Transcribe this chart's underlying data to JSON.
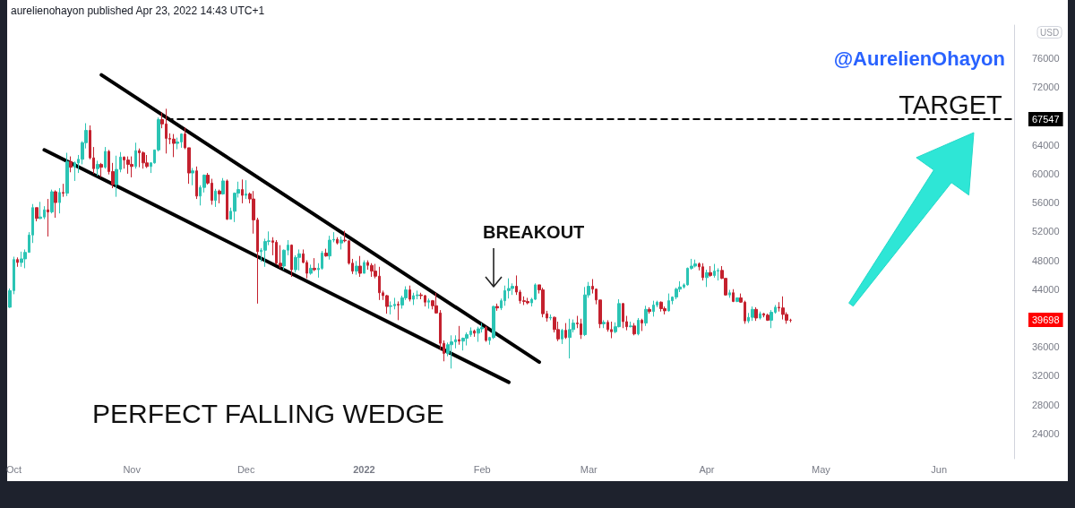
{
  "chart_data": {
    "type": "candlestick",
    "annotations": [
      "aurelienohayon published Apr 23, 2022 14:43 UTC+1",
      "@AurelienOhayon",
      "PERFECT FALLING WEDGE",
      {
        "text": "TARGET",
        "x": "2022-06-04",
        "y": 67547
      },
      "BREAKOUT",
      "39698"
    ],
    "ylabel": "USD",
    "xlim": [
      "2021-09-29T06:00",
      "2022-06-20T17:00"
    ],
    "xticks": [
      {
        "value": "2021-10-01",
        "label": "Oct"
      },
      {
        "value": "2021-11-01",
        "label": "Nov"
      },
      {
        "value": "2021-12-01",
        "label": "Dec"
      },
      {
        "value": "2022-01-01",
        "label": "2022"
      },
      {
        "value": "2022-02-01",
        "label": "Feb"
      },
      {
        "value": "2022-03-01",
        "label": "Mar"
      },
      {
        "value": "2022-04-01",
        "label": "Apr"
      },
      {
        "value": "2022-05-01",
        "label": "May"
      },
      {
        "value": "2022-06-01",
        "label": "Jun"
      }
    ],
    "ylim": [
      20500,
      80600
    ],
    "yticks": [
      24000,
      28000,
      32000,
      36000,
      44000,
      48000,
      52000,
      56000,
      60000,
      64000,
      72000,
      76000
    ],
    "ref_lines": [
      {
        "axis": "y",
        "value": 67547,
        "label": "67547",
        "color": "#000000",
        "line_style": "dashed"
      }
    ],
    "grid": false,
    "marker": "none",
    "series": [
      {
        "type": "candlestick",
        "x": [
          "2021-09-30",
          "2021-10-01",
          "2021-10-02",
          "2021-10-03",
          "2021-10-04",
          "2021-10-05",
          "2021-10-06",
          "2021-10-07",
          "2021-10-08",
          "2021-10-09",
          "2021-10-10",
          "2021-10-11",
          "2021-10-12",
          "2021-10-13",
          "2021-10-14",
          "2021-10-15",
          "2021-10-16",
          "2021-10-17",
          "2021-10-18",
          "2021-10-19",
          "2021-10-20",
          "2021-10-21",
          "2021-10-22",
          "2021-10-23",
          "2021-10-24",
          "2021-10-25",
          "2021-10-26",
          "2021-10-27",
          "2021-10-28",
          "2021-10-29",
          "2021-10-30",
          "2021-10-31",
          "2021-11-01",
          "2021-11-02",
          "2021-11-03",
          "2021-11-04",
          "2021-11-05",
          "2021-11-06",
          "2021-11-07",
          "2021-11-08",
          "2021-11-09",
          "2021-11-10",
          "2021-11-11",
          "2021-11-12",
          "2021-11-13",
          "2021-11-14",
          "2021-11-15",
          "2021-11-16",
          "2021-11-17",
          "2021-11-18",
          "2021-11-19",
          "2021-11-20",
          "2021-11-21",
          "2021-11-22",
          "2021-11-23",
          "2021-11-24",
          "2021-11-25",
          "2021-11-26",
          "2021-11-27",
          "2021-11-28",
          "2021-11-29",
          "2021-11-30",
          "2021-12-01",
          "2021-12-02",
          "2021-12-03",
          "2021-12-04",
          "2021-12-05",
          "2021-12-06",
          "2021-12-07",
          "2021-12-08",
          "2021-12-09",
          "2021-12-10",
          "2021-12-11",
          "2021-12-12",
          "2021-12-13",
          "2021-12-14",
          "2021-12-15",
          "2021-12-16",
          "2021-12-17",
          "2021-12-18",
          "2021-12-19",
          "2021-12-20",
          "2021-12-21",
          "2021-12-22",
          "2021-12-23",
          "2021-12-24",
          "2021-12-25",
          "2021-12-26",
          "2021-12-27",
          "2021-12-28",
          "2021-12-29",
          "2021-12-30",
          "2021-12-31",
          "2022-01-01",
          "2022-01-02",
          "2022-01-03",
          "2022-01-04",
          "2022-01-05",
          "2022-01-06",
          "2022-01-07",
          "2022-01-08",
          "2022-01-09",
          "2022-01-10",
          "2022-01-11",
          "2022-01-12",
          "2022-01-13",
          "2022-01-14",
          "2022-01-15",
          "2022-01-16",
          "2022-01-17",
          "2022-01-18",
          "2022-01-19",
          "2022-01-20",
          "2022-01-21",
          "2022-01-22",
          "2022-01-23",
          "2022-01-24",
          "2022-01-25",
          "2022-01-26",
          "2022-01-27",
          "2022-01-28",
          "2022-01-29",
          "2022-01-30",
          "2022-01-31",
          "2022-02-01",
          "2022-02-02",
          "2022-02-03",
          "2022-02-04",
          "2022-02-05",
          "2022-02-06",
          "2022-02-07",
          "2022-02-08",
          "2022-02-09",
          "2022-02-10",
          "2022-02-11",
          "2022-02-12",
          "2022-02-13",
          "2022-02-14",
          "2022-02-15",
          "2022-02-16",
          "2022-02-17",
          "2022-02-18",
          "2022-02-19",
          "2022-02-20",
          "2022-02-21",
          "2022-02-22",
          "2022-02-23",
          "2022-02-24",
          "2022-02-25",
          "2022-02-26",
          "2022-02-27",
          "2022-02-28",
          "2022-03-01",
          "2022-03-02",
          "2022-03-03",
          "2022-03-04",
          "2022-03-05",
          "2022-03-06",
          "2022-03-07",
          "2022-03-08",
          "2022-03-09",
          "2022-03-10",
          "2022-03-11",
          "2022-03-12",
          "2022-03-13",
          "2022-03-14",
          "2022-03-15",
          "2022-03-16",
          "2022-03-17",
          "2022-03-18",
          "2022-03-19",
          "2022-03-20",
          "2022-03-21",
          "2022-03-22",
          "2022-03-23",
          "2022-03-24",
          "2022-03-25",
          "2022-03-26",
          "2022-03-27",
          "2022-03-28",
          "2022-03-29",
          "2022-03-30",
          "2022-03-31",
          "2022-04-01",
          "2022-04-02",
          "2022-04-03",
          "2022-04-04",
          "2022-04-05",
          "2022-04-06",
          "2022-04-07",
          "2022-04-08",
          "2022-04-09",
          "2022-04-10",
          "2022-04-11",
          "2022-04-12",
          "2022-04-13",
          "2022-04-14",
          "2022-04-15",
          "2022-04-16",
          "2022-04-17",
          "2022-04-18",
          "2022-04-19",
          "2022-04-20",
          "2022-04-21",
          "2022-04-22",
          "2022-04-23"
        ],
        "ohlc": [
          [
            41500,
            44100,
            41400,
            43800
          ],
          [
            43800,
            48500,
            43300,
            48100
          ],
          [
            48100,
            48400,
            47100,
            47700
          ],
          [
            47700,
            49200,
            47100,
            48200
          ],
          [
            48200,
            49500,
            46900,
            49100
          ],
          [
            49100,
            51900,
            49100,
            51500
          ],
          [
            51500,
            55800,
            50400,
            55300
          ],
          [
            55300,
            55300,
            53400,
            53800
          ],
          [
            53800,
            56100,
            53700,
            54000
          ],
          [
            54000,
            55500,
            53700,
            55000
          ],
          [
            55000,
            56500,
            51300,
            54700
          ],
          [
            54700,
            57800,
            54500,
            57500
          ],
          [
            57500,
            57700,
            53900,
            56000
          ],
          [
            56000,
            58000,
            54500,
            57400
          ],
          [
            57400,
            58600,
            56800,
            57300
          ],
          [
            57300,
            62900,
            56900,
            61700
          ],
          [
            61700,
            62400,
            60200,
            60900
          ],
          [
            60900,
            61700,
            59000,
            61500
          ],
          [
            61500,
            62600,
            60100,
            62000
          ],
          [
            62000,
            64500,
            61300,
            64300
          ],
          [
            64300,
            67000,
            63500,
            66000
          ],
          [
            66000,
            66700,
            62000,
            62200
          ],
          [
            62200,
            63700,
            60000,
            60700
          ],
          [
            60700,
            61800,
            59700,
            61300
          ],
          [
            61300,
            61500,
            59500,
            60900
          ],
          [
            60900,
            63700,
            60700,
            63100
          ],
          [
            63100,
            63300,
            59900,
            60300
          ],
          [
            60300,
            61500,
            58000,
            58500
          ],
          [
            58500,
            62500,
            56800,
            60600
          ],
          [
            60600,
            63000,
            60200,
            62300
          ],
          [
            62300,
            62400,
            60700,
            61900
          ],
          [
            61900,
            62400,
            60000,
            61300
          ],
          [
            61300,
            62400,
            59500,
            61000
          ],
          [
            61000,
            64300,
            60700,
            63200
          ],
          [
            63200,
            63500,
            60900,
            62900
          ],
          [
            62900,
            63100,
            60700,
            61500
          ],
          [
            61500,
            62600,
            60800,
            61000
          ],
          [
            61000,
            61600,
            60100,
            61500
          ],
          [
            61500,
            63300,
            61400,
            63300
          ],
          [
            63300,
            67800,
            63100,
            67500
          ],
          [
            67500,
            68500,
            66300,
            66900
          ],
          [
            66900,
            69000,
            62800,
            64900
          ],
          [
            64900,
            65600,
            64100,
            64800
          ],
          [
            64800,
            65500,
            62300,
            64200
          ],
          [
            64200,
            65000,
            63400,
            64400
          ],
          [
            64400,
            65600,
            63600,
            65500
          ],
          [
            65500,
            66400,
            63400,
            63600
          ],
          [
            63600,
            63600,
            58600,
            60100
          ],
          [
            60100,
            60800,
            58400,
            60400
          ],
          [
            60400,
            61000,
            56500,
            56900
          ],
          [
            56900,
            58400,
            55600,
            58100
          ],
          [
            58100,
            59900,
            57400,
            59800
          ],
          [
            59800,
            60100,
            58500,
            58700
          ],
          [
            58700,
            59300,
            55700,
            56300
          ],
          [
            56300,
            57900,
            55400,
            57600
          ],
          [
            57600,
            57800,
            55900,
            57200
          ],
          [
            57200,
            59400,
            57100,
            59000
          ],
          [
            59000,
            59200,
            53600,
            53700
          ],
          [
            53700,
            55300,
            53700,
            54800
          ],
          [
            54800,
            57400,
            53300,
            57300
          ],
          [
            57300,
            58900,
            56700,
            57800
          ],
          [
            57800,
            59200,
            55900,
            57000
          ],
          [
            57000,
            59100,
            56500,
            57200
          ],
          [
            57200,
            57400,
            55900,
            56500
          ],
          [
            56500,
            57600,
            51700,
            53600
          ],
          [
            53600,
            53900,
            42000,
            49200
          ],
          [
            49200,
            49700,
            47800,
            49400
          ],
          [
            49400,
            51000,
            47100,
            50600
          ],
          [
            50600,
            52000,
            50100,
            50700
          ],
          [
            50700,
            51200,
            48700,
            50500
          ],
          [
            50500,
            50800,
            47400,
            47600
          ],
          [
            47600,
            50100,
            46900,
            47200
          ],
          [
            47200,
            49500,
            46700,
            49400
          ],
          [
            49400,
            50800,
            48700,
            50100
          ],
          [
            50100,
            50200,
            45700,
            46700
          ],
          [
            46700,
            48700,
            46300,
            48400
          ],
          [
            48400,
            49500,
            46600,
            48900
          ],
          [
            48900,
            49500,
            47600,
            47700
          ],
          [
            47700,
            48000,
            45500,
            46200
          ],
          [
            46200,
            47400,
            46000,
            46900
          ],
          [
            46900,
            48300,
            46500,
            46700
          ],
          [
            46700,
            47600,
            45600,
            46900
          ],
          [
            46900,
            49300,
            46700,
            49000
          ],
          [
            49000,
            49600,
            48500,
            48600
          ],
          [
            48600,
            51400,
            48100,
            50800
          ],
          [
            50800,
            51900,
            50500,
            50900
          ],
          [
            50900,
            51200,
            50200,
            50400
          ],
          [
            50400,
            51300,
            49500,
            50800
          ],
          [
            50800,
            52100,
            50500,
            50700
          ],
          [
            50700,
            50700,
            47400,
            47600
          ],
          [
            47600,
            48200,
            46100,
            46500
          ],
          [
            46500,
            47900,
            46000,
            47200
          ],
          [
            47200,
            48600,
            45700,
            46200
          ],
          [
            46200,
            48000,
            46200,
            47700
          ],
          [
            47700,
            48000,
            46700,
            47300
          ],
          [
            47300,
            47600,
            45700,
            46500
          ],
          [
            46500,
            47500,
            45500,
            45800
          ],
          [
            45800,
            47100,
            42500,
            43500
          ],
          [
            43500,
            43800,
            42500,
            43100
          ],
          [
            43100,
            43200,
            40600,
            41600
          ],
          [
            41600,
            42300,
            40500,
            41700
          ],
          [
            41700,
            42800,
            41200,
            41900
          ],
          [
            41900,
            42300,
            39700,
            41800
          ],
          [
            41800,
            43100,
            41300,
            42800
          ],
          [
            42800,
            44400,
            42500,
            43900
          ],
          [
            43900,
            44500,
            42300,
            42600
          ],
          [
            42600,
            43500,
            41800,
            43100
          ],
          [
            43100,
            43800,
            42600,
            43200
          ],
          [
            43200,
            43500,
            42600,
            43100
          ],
          [
            43100,
            43200,
            41600,
            42200
          ],
          [
            42200,
            42700,
            41300,
            42400
          ],
          [
            42400,
            42500,
            41200,
            41700
          ],
          [
            41700,
            43500,
            40600,
            40700
          ],
          [
            40700,
            41100,
            35500,
            36500
          ],
          [
            36500,
            36900,
            34000,
            35100
          ],
          [
            35100,
            36600,
            34700,
            36300
          ],
          [
            36300,
            37600,
            33000,
            36700
          ],
          [
            36700,
            37600,
            35800,
            37000
          ],
          [
            37000,
            38900,
            36300,
            36800
          ],
          [
            36800,
            37300,
            35500,
            37200
          ],
          [
            37200,
            38000,
            36200,
            37700
          ],
          [
            37700,
            38700,
            37400,
            38200
          ],
          [
            38200,
            38400,
            37400,
            37900
          ],
          [
            37900,
            38800,
            36700,
            38500
          ],
          [
            38500,
            39300,
            38000,
            38700
          ],
          [
            38700,
            38900,
            36700,
            36900
          ],
          [
            36900,
            37400,
            36300,
            37300
          ],
          [
            37300,
            41700,
            37100,
            41600
          ],
          [
            41600,
            42000,
            41000,
            41400
          ],
          [
            41400,
            42700,
            41100,
            42400
          ],
          [
            42400,
            44500,
            41700,
            43800
          ],
          [
            43800,
            45500,
            42700,
            44100
          ],
          [
            44100,
            44800,
            43200,
            44400
          ],
          [
            44400,
            45900,
            43200,
            43600
          ],
          [
            43600,
            43900,
            42000,
            42400
          ],
          [
            42400,
            43000,
            41800,
            42300
          ],
          [
            42300,
            42800,
            41900,
            42100
          ],
          [
            42100,
            42800,
            41600,
            42600
          ],
          [
            42600,
            44800,
            42500,
            44600
          ],
          [
            44600,
            44600,
            43400,
            43900
          ],
          [
            43900,
            44200,
            40100,
            40600
          ],
          [
            40600,
            41000,
            39500,
            40000
          ],
          [
            40000,
            40500,
            39700,
            40100
          ],
          [
            40100,
            40200,
            38000,
            38400
          ],
          [
            38400,
            39500,
            36800,
            37100
          ],
          [
            37100,
            38500,
            36400,
            38300
          ],
          [
            38300,
            39300,
            37100,
            37300
          ],
          [
            37300,
            39900,
            34400,
            38400
          ],
          [
            38400,
            39800,
            38000,
            39300
          ],
          [
            39300,
            40300,
            38600,
            39200
          ],
          [
            39200,
            39900,
            37100,
            37700
          ],
          [
            37700,
            44300,
            37500,
            43200
          ],
          [
            43200,
            45000,
            42800,
            44400
          ],
          [
            44400,
            45400,
            43400,
            44000
          ],
          [
            44000,
            44100,
            41900,
            42500
          ],
          [
            42500,
            42500,
            38600,
            39200
          ],
          [
            39200,
            39700,
            38600,
            39400
          ],
          [
            39400,
            39700,
            38100,
            38400
          ],
          [
            38400,
            39500,
            37200,
            38100
          ],
          [
            38100,
            39400,
            37900,
            38800
          ],
          [
            38800,
            42600,
            38700,
            42000
          ],
          [
            42000,
            42100,
            38600,
            39500
          ],
          [
            39500,
            40300,
            38300,
            38800
          ],
          [
            38800,
            39500,
            38700,
            38900
          ],
          [
            38900,
            39300,
            37600,
            37800
          ],
          [
            37800,
            40000,
            37600,
            39700
          ],
          [
            39700,
            39900,
            38200,
            39300
          ],
          [
            39300,
            41700,
            38900,
            41200
          ],
          [
            41200,
            41500,
            40600,
            40900
          ],
          [
            40900,
            42400,
            40200,
            41800
          ],
          [
            41800,
            42400,
            41500,
            42200
          ],
          [
            42200,
            42300,
            40900,
            41300
          ],
          [
            41300,
            41600,
            40500,
            41000
          ],
          [
            41000,
            43400,
            40900,
            42400
          ],
          [
            42400,
            43000,
            41900,
            42900
          ],
          [
            42900,
            44200,
            42600,
            44000
          ],
          [
            44000,
            45100,
            43600,
            44300
          ],
          [
            44300,
            44800,
            44100,
            44600
          ],
          [
            44600,
            47000,
            44500,
            46900
          ],
          [
            46900,
            48200,
            46700,
            47200
          ],
          [
            47200,
            48100,
            47000,
            47500
          ],
          [
            47500,
            47700,
            46600,
            47100
          ],
          [
            47100,
            47600,
            45200,
            45600
          ],
          [
            45600,
            46700,
            44300,
            46300
          ],
          [
            46300,
            47200,
            45700,
            45900
          ],
          [
            45900,
            47500,
            45600,
            46500
          ],
          [
            46500,
            46900,
            45200,
            46600
          ],
          [
            46600,
            47200,
            45400,
            45500
          ],
          [
            45500,
            45500,
            43100,
            43200
          ],
          [
            43200,
            43900,
            42800,
            43500
          ],
          [
            43500,
            44000,
            42200,
            42300
          ],
          [
            42300,
            42800,
            42200,
            42800
          ],
          [
            42800,
            43400,
            42100,
            42200
          ],
          [
            42200,
            42400,
            39200,
            39600
          ],
          [
            39600,
            40700,
            39300,
            40100
          ],
          [
            40100,
            41600,
            39600,
            41200
          ],
          [
            41200,
            41500,
            39600,
            40000
          ],
          [
            40000,
            40900,
            39800,
            40600
          ],
          [
            40600,
            40700,
            40100,
            40400
          ],
          [
            40400,
            40600,
            39600,
            39700
          ],
          [
            39700,
            41100,
            38600,
            40800
          ],
          [
            40800,
            41800,
            40600,
            41500
          ],
          [
            41500,
            42200,
            40900,
            41400
          ],
          [
            41400,
            43000,
            39800,
            40500
          ],
          [
            40500,
            40800,
            39200,
            39700
          ],
          [
            39700,
            39900,
            39400,
            39698
          ]
        ],
        "colors": [
          "#2bc4b4",
          "#2bc4b4",
          "#c4212e",
          "#2bc4b4",
          "#2bc4b4",
          "#2bc4b4",
          "#2bc4b4",
          "#c4212e",
          "#2bc4b4",
          "#2bc4b4",
          "#c4212e",
          "#2bc4b4",
          "#c4212e",
          "#2bc4b4",
          "#c4212e",
          "#2bc4b4",
          "#c4212e",
          "#2bc4b4",
          "#2bc4b4",
          "#2bc4b4",
          "#2bc4b4",
          "#c4212e",
          "#c4212e",
          "#2bc4b4",
          "#c4212e",
          "#2bc4b4",
          "#c4212e",
          "#c4212e",
          "#2bc4b4",
          "#2bc4b4",
          "#c4212e",
          "#c4212e",
          "#c4212e",
          "#2bc4b4",
          "#c4212e",
          "#c4212e",
          "#c4212e",
          "#2bc4b4",
          "#2bc4b4",
          "#2bc4b4",
          "#c4212e",
          "#c4212e",
          "#c4212e",
          "#c4212e",
          "#2bc4b4",
          "#2bc4b4",
          "#c4212e",
          "#c4212e",
          "#2bc4b4",
          "#c4212e",
          "#2bc4b4",
          "#2bc4b4",
          "#c4212e",
          "#c4212e",
          "#2bc4b4",
          "#c4212e",
          "#2bc4b4",
          "#c4212e",
          "#2bc4b4",
          "#2bc4b4",
          "#2bc4b4",
          "#c4212e",
          "#2bc4b4",
          "#c4212e",
          "#c4212e",
          "#c4212e",
          "#2bc4b4",
          "#2bc4b4",
          "#2bc4b4",
          "#c4212e",
          "#c4212e",
          "#c4212e",
          "#2bc4b4",
          "#2bc4b4",
          "#c4212e",
          "#2bc4b4",
          "#2bc4b4",
          "#c4212e",
          "#c4212e",
          "#2bc4b4",
          "#c4212e",
          "#2bc4b4",
          "#2bc4b4",
          "#c4212e",
          "#2bc4b4",
          "#2bc4b4",
          "#c4212e",
          "#2bc4b4",
          "#c4212e",
          "#c4212e",
          "#c4212e",
          "#2bc4b4",
          "#c4212e",
          "#2bc4b4",
          "#c4212e",
          "#c4212e",
          "#c4212e",
          "#c4212e",
          "#c4212e",
          "#c4212e",
          "#2bc4b4",
          "#2bc4b4",
          "#c4212e",
          "#2bc4b4",
          "#2bc4b4",
          "#c4212e",
          "#2bc4b4",
          "#2bc4b4",
          "#c4212e",
          "#c4212e",
          "#2bc4b4",
          "#c4212e",
          "#c4212e",
          "#c4212e",
          "#c4212e",
          "#2bc4b4",
          "#2bc4b4",
          "#2bc4b4",
          "#c4212e",
          "#2bc4b4",
          "#2bc4b4",
          "#2bc4b4",
          "#c4212e",
          "#2bc4b4",
          "#2bc4b4",
          "#c4212e",
          "#2bc4b4",
          "#2bc4b4",
          "#c4212e",
          "#2bc4b4",
          "#2bc4b4",
          "#2bc4b4",
          "#2bc4b4",
          "#c4212e",
          "#c4212e",
          "#c4212e",
          "#c4212e",
          "#2bc4b4",
          "#2bc4b4",
          "#c4212e",
          "#c4212e",
          "#c4212e",
          "#2bc4b4",
          "#c4212e",
          "#c4212e",
          "#2bc4b4",
          "#c4212e",
          "#2bc4b4",
          "#2bc4b4",
          "#c4212e",
          "#c4212e",
          "#2bc4b4",
          "#2bc4b4",
          "#c4212e",
          "#c4212e",
          "#c4212e",
          "#2bc4b4",
          "#c4212e",
          "#c4212e",
          "#2bc4b4",
          "#2bc4b4",
          "#c4212e",
          "#c4212e",
          "#2bc4b4",
          "#c4212e",
          "#2bc4b4",
          "#c4212e",
          "#2bc4b4",
          "#c4212e",
          "#2bc4b4",
          "#2bc4b4",
          "#c4212e",
          "#c4212e",
          "#2bc4b4",
          "#2bc4b4",
          "#2bc4b4",
          "#2bc4b4",
          "#2bc4b4",
          "#2bc4b4",
          "#2bc4b4",
          "#2bc4b4",
          "#c4212e",
          "#c4212e",
          "#2bc4b4",
          "#c4212e",
          "#2bc4b4",
          "#2bc4b4",
          "#c4212e",
          "#c4212e",
          "#2bc4b4",
          "#c4212e",
          "#2bc4b4",
          "#c4212e",
          "#c4212e",
          "#2bc4b4",
          "#2bc4b4",
          "#c4212e",
          "#2bc4b4",
          "#c4212e",
          "#c4212e",
          "#2bc4b4",
          "#2bc4b4",
          "#c4212e",
          "#c4212e",
          "#c4212e",
          "#c4212e"
        ]
      },
      {
        "type": "line",
        "x": [
          "2021-10-24",
          "2022-02-16"
        ],
        "values": [
          73700,
          33900
        ],
        "color": "#000000"
      },
      {
        "type": "line",
        "x": [
          "2021-10-09",
          "2022-02-08"
        ],
        "values": [
          63300,
          31100
        ],
        "color": "#000000"
      }
    ]
  }
}
